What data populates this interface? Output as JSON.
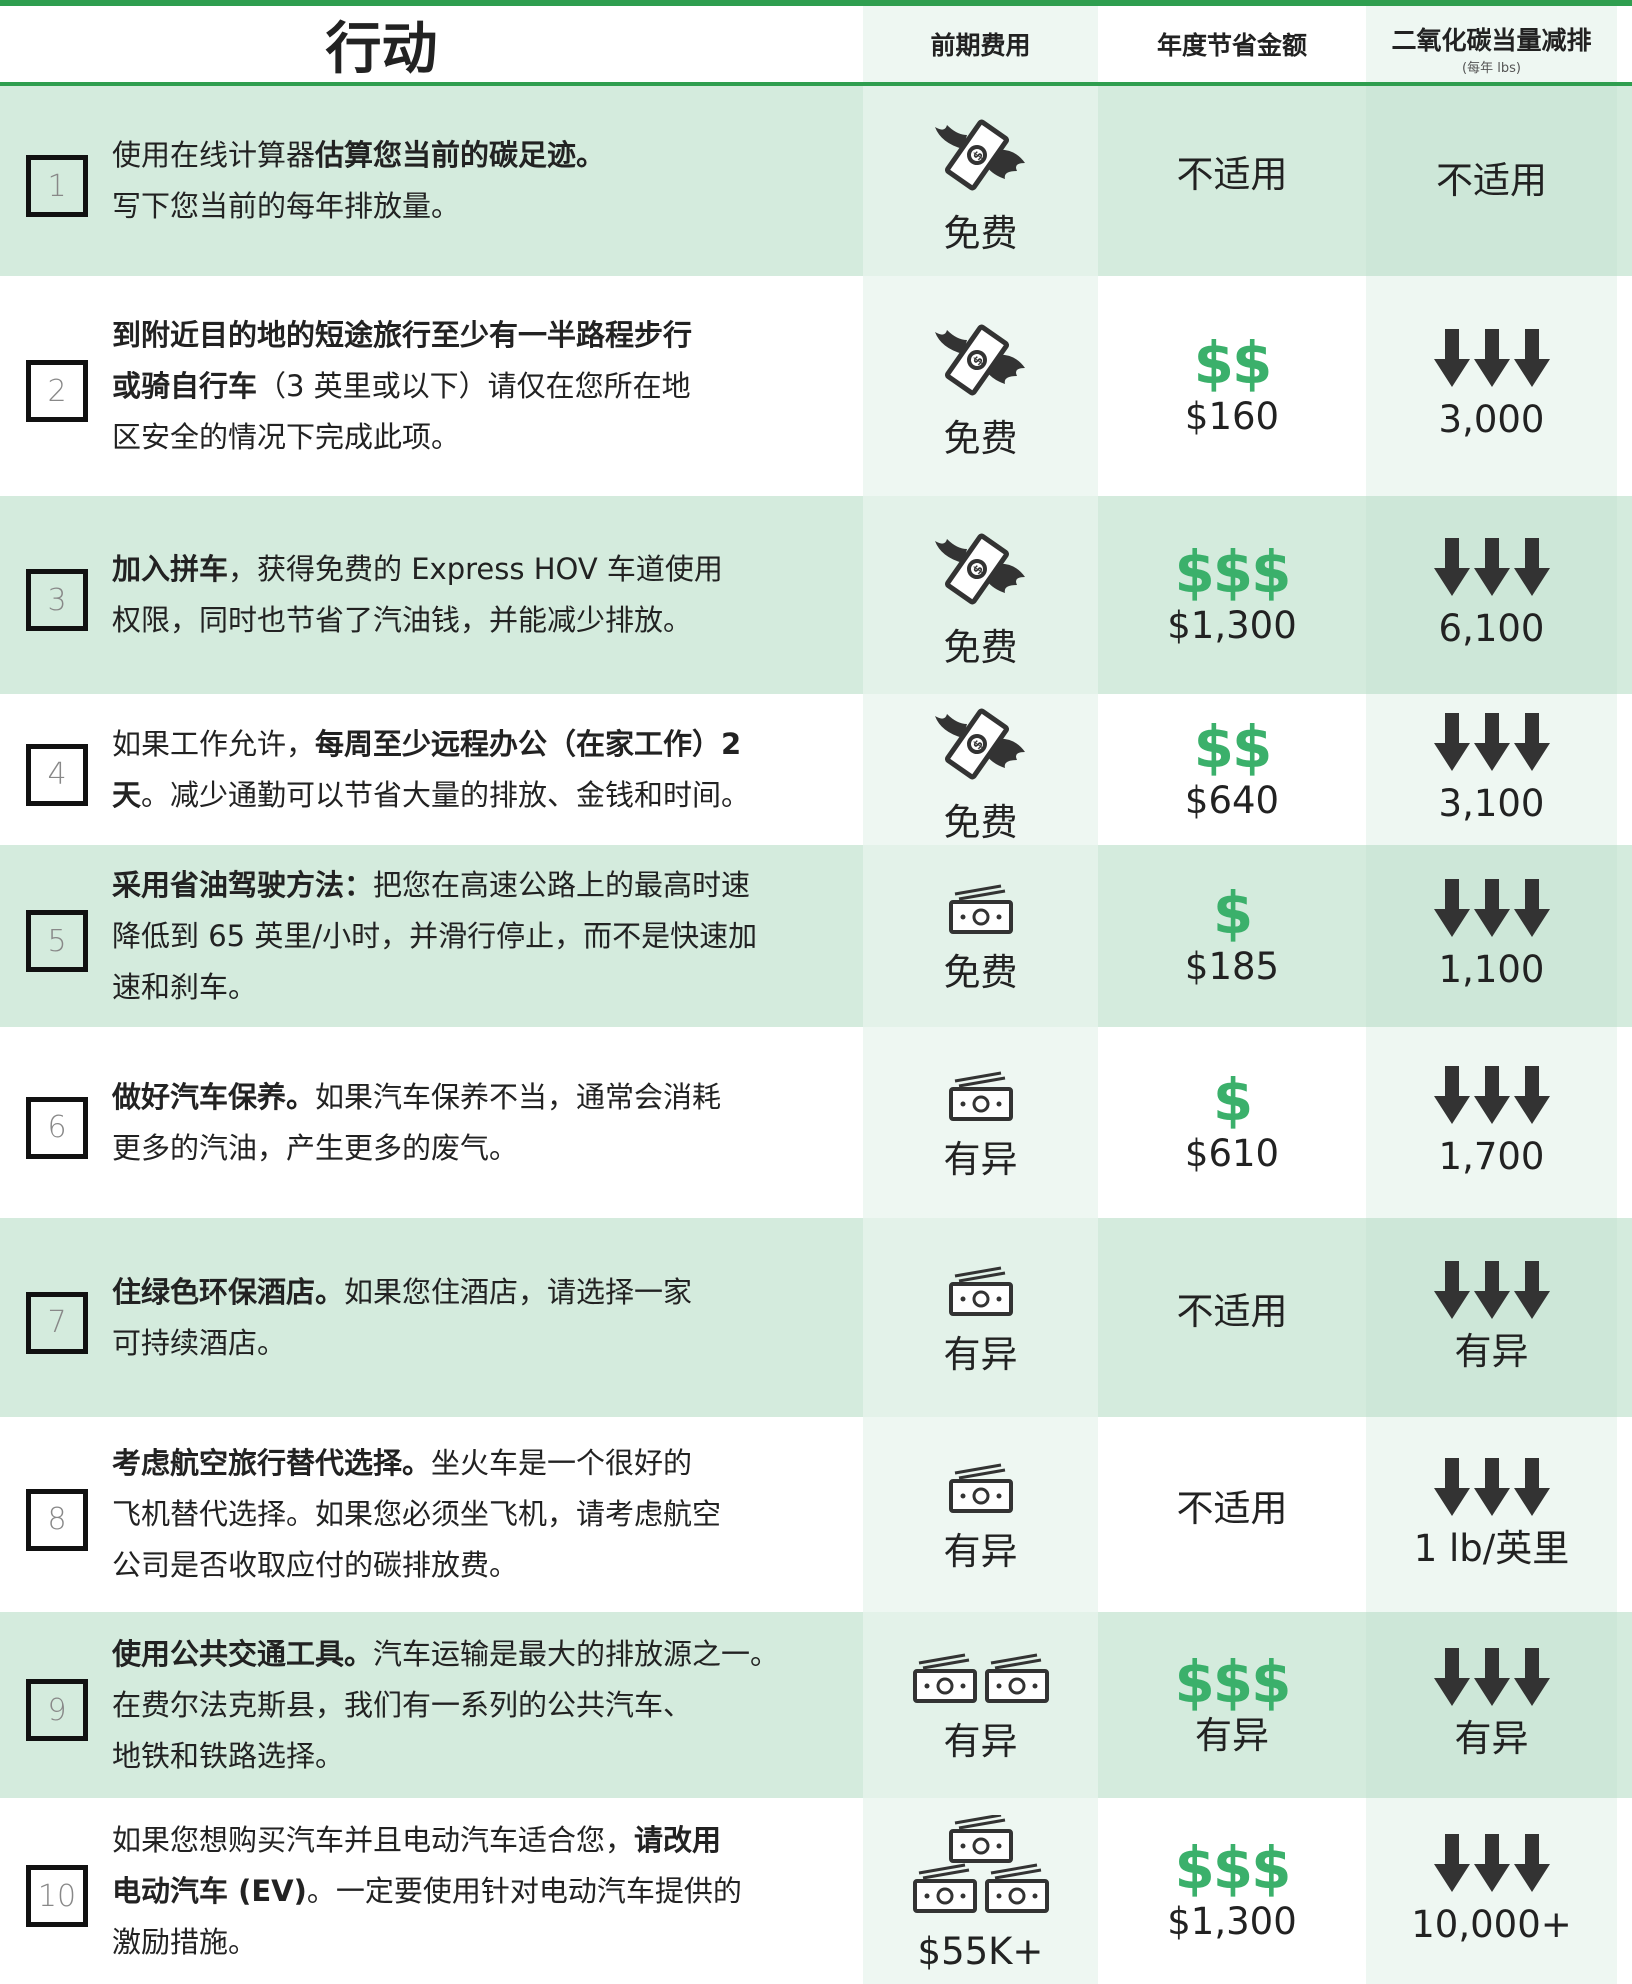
{
  "header": {
    "action": "行动",
    "cost": "前期费用",
    "savings": "年度节省金额",
    "co2": "二氧化碳当量减排",
    "co2_unit": "(每年 lbs)"
  },
  "rows": [
    {
      "number": "1",
      "action": [
        [
          {
            "text": "使用在线计算器"
          },
          {
            "text": "估算您当前的碳足迹。",
            "bold": true
          }
        ],
        [
          {
            "text": "写下您当前的每年排放量。"
          }
        ]
      ],
      "cost": "免费",
      "savings": "不适用",
      "co2": "不适用"
    },
    {
      "number": "2",
      "action": [
        [
          {
            "text": "到附近目的地的短途旅行至少有一半路程步行",
            "bold": true
          }
        ],
        [
          {
            "text": "或骑自行车",
            "bold": true
          },
          {
            "text": "（3 英里或以下）请仅在您所在地"
          }
        ],
        [
          {
            "text": "区安全的情况下完成此项。"
          }
        ]
      ],
      "cost": "免费",
      "savings_rating": "$$",
      "savings": "$160",
      "co2": "3,000"
    },
    {
      "number": "3",
      "action": [
        [
          {
            "text": "加入拼车",
            "bold": true
          },
          {
            "text": "，获得免费的 Express HOV 车道使用"
          }
        ],
        [
          {
            "text": "权限，同时也节省了汽油钱，并能减少排放。"
          }
        ]
      ],
      "cost": "免费",
      "savings_rating": "$$$",
      "savings": "$1,300",
      "co2": "6,100"
    },
    {
      "number": "4",
      "action": [
        [
          {
            "text": "如果工作允许，"
          },
          {
            "text": "每周至少远程办公（在家工作）2",
            "bold": true
          }
        ],
        [
          {
            "text": "天",
            "bold": true
          },
          {
            "text": "。减少通勤可以节省大量的排放、金钱和时间。"
          }
        ]
      ],
      "cost": "免费",
      "savings_rating": "$$",
      "savings": "$640",
      "co2": "3,100"
    },
    {
      "number": "5",
      "action": [
        [
          {
            "text": "采用省油驾驶方法：",
            "bold": true
          },
          {
            "text": "把您在高速公路上的最高时速"
          }
        ],
        [
          {
            "text": "降低到 65 英里/小时，并滑行停止，而不是快速加"
          }
        ],
        [
          {
            "text": "速和刹车。"
          }
        ]
      ],
      "cost": "免费",
      "savings_rating": "$",
      "savings": "$185",
      "co2": "1,100"
    },
    {
      "number": "6",
      "action": [
        [
          {
            "text": "做好汽车保养。",
            "bold": true
          },
          {
            "text": "如果汽车保养不当，通常会消耗"
          }
        ],
        [
          {
            "text": "更多的汽油，产生更多的废气。"
          }
        ]
      ],
      "cost": "有异",
      "savings_rating": "$",
      "savings": "$610",
      "co2": "1,700"
    },
    {
      "number": "7",
      "action": [
        [
          {
            "text": "住绿色环保酒店。",
            "bold": true
          },
          {
            "text": "如果您住酒店，请选择一家"
          }
        ],
        [
          {
            "text": "可持续酒店。"
          }
        ]
      ],
      "cost": "有异",
      "savings": "不适用",
      "co2": "有异"
    },
    {
      "number": "8",
      "action": [
        [
          {
            "text": "考虑航空旅行替代选择。",
            "bold": true
          },
          {
            "text": "坐火车是一个很好的"
          }
        ],
        [
          {
            "text": "飞机替代选择。如果您必须坐飞机，请考虑航空"
          }
        ],
        [
          {
            "text": "公司是否收取应付的碳排放费。"
          }
        ]
      ],
      "cost": "有异",
      "savings": "不适用",
      "co2": "1 lb/英里"
    },
    {
      "number": "9",
      "action": [
        [
          {
            "text": "使用公共交通工具。",
            "bold": true
          },
          {
            "text": "汽车运输是最大的排放源之一。"
          }
        ],
        [
          {
            "text": "在费尔法克斯县，我们有一系列的公共汽车、"
          }
        ],
        [
          {
            "text": "地铁和铁路选择。"
          }
        ]
      ],
      "cost": "有异",
      "savings_rating": "$$$",
      "savings": "有异",
      "co2": "有异"
    },
    {
      "number": "10",
      "action": [
        [
          {
            "text": "如果您想购买汽车并且电动汽车适合您，"
          },
          {
            "text": "请改用",
            "bold": true
          }
        ],
        [
          {
            "text": "电动汽车 (EV)",
            "bold": true
          },
          {
            "text": "。一定要使用针对电动汽车提供的"
          }
        ],
        [
          {
            "text": "激励措施。"
          }
        ]
      ],
      "cost": "$55K+",
      "savings_rating": "$$$",
      "savings": "$1,300",
      "co2": "10,000+"
    }
  ]
}
